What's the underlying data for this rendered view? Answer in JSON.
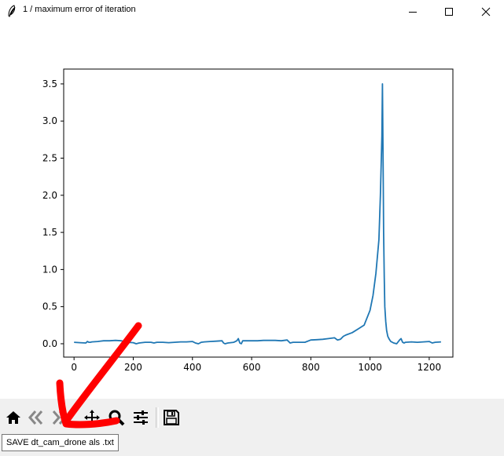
{
  "window": {
    "title": "1 / maximum error of iteration",
    "icon": "feather-icon",
    "controls": [
      "minimize-icon",
      "maximize-icon",
      "close-icon"
    ]
  },
  "chart_data": {
    "type": "line",
    "title": "",
    "xlabel": "",
    "ylabel": "",
    "xlim": [
      -35,
      1280
    ],
    "ylim": [
      -0.18,
      3.7
    ],
    "xticks": [
      0,
      200,
      400,
      600,
      800,
      1000,
      1200
    ],
    "xtick_labels": [
      "0",
      "200",
      "400",
      "600",
      "800",
      "1000",
      "1200"
    ],
    "yticks": [
      0.0,
      0.5,
      1.0,
      1.5,
      2.0,
      2.5,
      3.0,
      3.5
    ],
    "ytick_labels": [
      "0.0",
      "0.5",
      "1.0",
      "1.5",
      "2.0",
      "2.5",
      "3.0",
      "3.5"
    ],
    "grid": false,
    "legend": "none",
    "color": "#1f77b4",
    "series": [
      {
        "x": [
          0,
          20,
          40,
          45,
          50,
          55,
          60,
          80,
          100,
          120,
          140,
          160,
          180,
          200,
          210,
          220,
          240,
          260,
          270,
          280,
          300,
          320,
          340,
          360,
          380,
          400,
          410,
          420,
          430,
          440,
          460,
          480,
          500,
          505,
          510,
          520,
          540,
          550,
          555,
          560,
          565,
          570,
          580,
          600,
          620,
          640,
          660,
          680,
          700,
          720,
          730,
          740,
          760,
          780,
          800,
          820,
          840,
          860,
          880,
          890,
          900,
          910,
          920,
          940,
          960,
          980,
          1000,
          1010,
          1020,
          1030,
          1035,
          1040,
          1042,
          1044,
          1046,
          1048,
          1050,
          1053,
          1056,
          1060,
          1065,
          1070,
          1080,
          1090,
          1100,
          1105,
          1110,
          1115,
          1120,
          1140,
          1160,
          1180,
          1200,
          1210,
          1220,
          1240
        ],
        "y": [
          0.02,
          0.015,
          0.01,
          0.03,
          0.02,
          0.02,
          0.025,
          0.03,
          0.04,
          0.04,
          0.045,
          0.04,
          0.02,
          0.015,
          0.0,
          0.01,
          0.02,
          0.02,
          0.01,
          0.02,
          0.02,
          0.015,
          0.02,
          0.025,
          0.025,
          0.03,
          0.01,
          0.0,
          0.02,
          0.025,
          0.03,
          0.035,
          0.04,
          0.01,
          0.0,
          0.01,
          0.02,
          0.04,
          0.07,
          0.01,
          0.0,
          0.04,
          0.04,
          0.04,
          0.04,
          0.045,
          0.045,
          0.045,
          0.04,
          0.05,
          0.01,
          0.02,
          0.02,
          0.02,
          0.05,
          0.055,
          0.06,
          0.07,
          0.08,
          0.05,
          0.06,
          0.1,
          0.12,
          0.15,
          0.2,
          0.25,
          0.45,
          0.65,
          0.95,
          1.4,
          2.0,
          2.8,
          3.5,
          2.5,
          1.5,
          0.9,
          0.5,
          0.3,
          0.18,
          0.1,
          0.06,
          0.03,
          0.01,
          0.0,
          0.05,
          0.07,
          0.02,
          0.01,
          0.02,
          0.025,
          0.02,
          0.025,
          0.03,
          0.01,
          0.02,
          0.025
        ]
      }
    ]
  },
  "toolbar": {
    "buttons": [
      {
        "icon": "home-icon"
      },
      {
        "icon": "back-arrow-icon"
      },
      {
        "icon": "forward-arrow-icon"
      },
      {
        "icon": "pan-icon"
      },
      {
        "icon": "zoom-icon"
      },
      {
        "icon": "configure-subplots-icon"
      },
      {
        "icon": "save-icon"
      }
    ]
  },
  "tooltip": {
    "text": "SAVE dt_cam_drone als .txt"
  },
  "annotation": {
    "color": "#ff0000",
    "shape": "arrow-pointing-down-left"
  }
}
